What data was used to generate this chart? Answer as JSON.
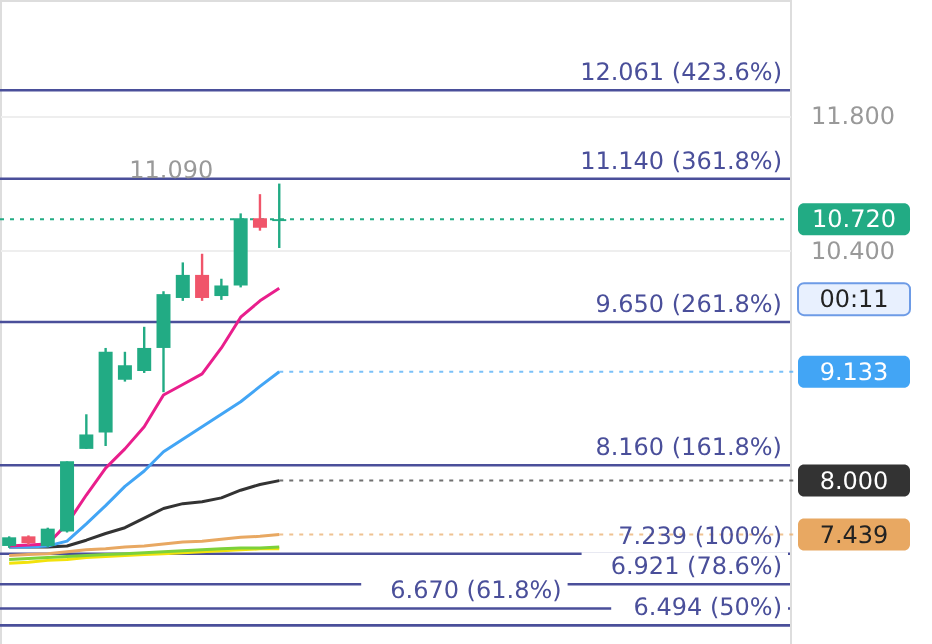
{
  "chart_data": {
    "type": "candlestick",
    "categories": [
      null,
      null,
      null,
      null,
      null,
      null,
      null,
      null,
      null,
      null,
      null,
      null,
      null,
      null,
      null,
      null,
      null,
      null,
      null,
      null,
      null,
      null,
      null,
      null,
      null,
      null,
      null,
      null,
      null,
      null,
      null,
      null,
      null,
      null,
      null,
      null,
      null,
      null,
      null,
      null,
      null
    ],
    "ohlc": [
      [
        7.32,
        7.42,
        7.3,
        7.41
      ],
      [
        7.42,
        7.43,
        7.33,
        7.35
      ],
      [
        7.32,
        7.51,
        7.31,
        7.5
      ],
      [
        7.47,
        8.2,
        7.46,
        8.2
      ],
      [
        8.33,
        8.69,
        8.33,
        8.48
      ],
      [
        8.5,
        9.38,
        8.36,
        9.34
      ],
      [
        9.05,
        9.34,
        9.03,
        9.2
      ],
      [
        9.14,
        9.6,
        9.12,
        9.38
      ],
      [
        9.38,
        9.97,
        8.92,
        9.94
      ],
      [
        9.9,
        10.27,
        9.87,
        10.14
      ],
      [
        10.14,
        10.36,
        9.87,
        9.9
      ],
      [
        9.92,
        10.1,
        9.88,
        10.03
      ],
      [
        10.03,
        10.78,
        10.01,
        10.73
      ],
      [
        10.73,
        10.98,
        10.6,
        10.63
      ],
      [
        10.7,
        11.09,
        10.42,
        10.72
      ],
      null,
      null,
      null,
      null,
      null,
      null,
      null,
      null,
      null,
      null,
      null,
      null,
      null,
      null,
      null,
      null,
      null,
      null,
      null,
      null,
      null,
      null,
      null,
      null,
      null,
      null
    ],
    "colors": [
      "#22ab84",
      "#f0556a",
      "#22ab84",
      "#22ab84",
      "#22ab84",
      "#22ab84",
      "#22ab84",
      "#22ab84",
      "#22ab84",
      "#22ab84",
      "#f0556a",
      "#22ab84",
      "#22ab84",
      "#f0556a",
      "#22ab84",
      null,
      null,
      null,
      null,
      null,
      null,
      null,
      null,
      null,
      null,
      null,
      null,
      null,
      null,
      null,
      null,
      null,
      null,
      null,
      null,
      null,
      null,
      null,
      null,
      null,
      null
    ],
    "series": [
      {
        "type": "line",
        "color": "#f2e20c",
        "values": [
          7.14,
          7.15,
          7.17,
          7.18,
          7.2,
          7.21,
          7.22,
          7.23,
          7.24,
          7.25,
          7.26,
          7.27,
          7.28,
          7.29,
          7.29,
          null,
          null,
          null,
          null,
          null,
          null,
          null,
          null,
          null,
          null,
          null,
          null,
          null,
          null,
          null,
          null,
          null,
          null,
          null,
          null,
          null,
          null,
          null,
          null,
          null,
          null
        ]
      },
      {
        "type": "line",
        "color": "#7cd13a",
        "values": [
          7.18,
          7.19,
          7.2,
          7.21,
          7.22,
          7.23,
          7.24,
          7.25,
          7.26,
          7.27,
          7.28,
          7.29,
          7.3,
          7.3,
          7.31,
          null,
          null,
          null,
          null,
          null,
          null,
          null,
          null,
          null,
          null,
          null,
          null,
          null,
          null,
          null,
          null,
          null,
          null,
          null,
          null,
          null,
          null,
          null,
          null,
          null,
          null
        ]
      },
      {
        "type": "line",
        "color": "#e8a862",
        "values": [
          7.22,
          7.23,
          7.24,
          7.26,
          7.28,
          7.29,
          7.31,
          7.32,
          7.34,
          7.36,
          7.37,
          7.39,
          7.41,
          7.42,
          7.439,
          null,
          null,
          null,
          null,
          null,
          null,
          null,
          null,
          null,
          null,
          null,
          null,
          null,
          null,
          null,
          null,
          null,
          null,
          null,
          null,
          null,
          null,
          null,
          null,
          null,
          null
        ],
        "value_labels": [
          null,
          null,
          null,
          null,
          null,
          null,
          null,
          null,
          null,
          null,
          null,
          null,
          null,
          null,
          "7.439",
          null,
          null,
          null,
          null,
          null,
          null,
          null,
          null,
          null,
          null,
          null,
          null,
          null,
          null,
          null,
          null,
          null,
          null,
          null,
          null,
          null,
          null,
          null,
          null,
          null,
          null
        ]
      },
      {
        "type": "line",
        "color": "#333333",
        "values": [
          7.31,
          null,
          7.31,
          7.32,
          7.38,
          7.45,
          7.51,
          7.61,
          7.71,
          7.76,
          7.78,
          7.82,
          7.9,
          7.96,
          8.0,
          null,
          null,
          null,
          null,
          null,
          null,
          null,
          null,
          null,
          null,
          null,
          null,
          null,
          null,
          null,
          null,
          null,
          null,
          null,
          null,
          null,
          null,
          null,
          null,
          null,
          null
        ],
        "value_labels": [
          null,
          null,
          null,
          null,
          null,
          null,
          null,
          null,
          null,
          null,
          null,
          null,
          null,
          null,
          "8.000",
          null,
          null,
          null,
          null,
          null,
          null,
          null,
          null,
          null,
          null,
          null,
          null,
          null,
          null,
          null,
          null,
          null,
          null,
          null,
          null,
          null,
          null,
          null,
          null,
          null,
          null
        ]
      },
      {
        "type": "line",
        "color": "#42a5f5",
        "values": [
          7.31,
          7.31,
          7.32,
          7.37,
          7.55,
          7.74,
          7.94,
          8.1,
          8.3,
          8.43,
          8.56,
          8.69,
          8.82,
          8.98,
          9.133,
          null,
          null,
          null,
          null,
          null,
          null,
          null,
          null,
          null,
          null,
          null,
          null,
          null,
          null,
          null,
          null,
          null,
          null,
          null,
          null,
          null,
          null,
          null,
          null,
          null,
          null
        ],
        "value_labels": [
          null,
          null,
          null,
          null,
          null,
          null,
          null,
          null,
          null,
          null,
          null,
          null,
          null,
          null,
          "9.133",
          null,
          null,
          null,
          null,
          null,
          null,
          null,
          null,
          null,
          null,
          null,
          null,
          null,
          null,
          null,
          null,
          null,
          null,
          null,
          null,
          null,
          null,
          null,
          null,
          null,
          null
        ]
      },
      {
        "type": "line",
        "color": "#e91e8c",
        "values": [
          7.32,
          7.33,
          7.34,
          7.55,
          7.85,
          8.13,
          8.33,
          8.56,
          8.89,
          9.0,
          9.11,
          9.38,
          9.7,
          9.87,
          10.0,
          null,
          null,
          null,
          null,
          null,
          null,
          null,
          null,
          null,
          null,
          null,
          null,
          null,
          null,
          null,
          null,
          null,
          null,
          null,
          null,
          null,
          null,
          null,
          null,
          null,
          null
        ]
      }
    ],
    "ylim": [
      6.3,
      13.0
    ],
    "yticks": [
      {
        "value": 11.8,
        "label": "11.800"
      },
      {
        "value": 10.4,
        "label": "10.400"
      }
    ],
    "grid": "y",
    "tick_labels": "y",
    "ref_lines": [
      {
        "axis": "y",
        "value": 12.061,
        "label": "12.061 (423.6%)",
        "color": "#4a4f9a"
      },
      {
        "axis": "y",
        "value": 11.14,
        "label": "11.140 (361.8%)",
        "color": "#4a4f9a"
      },
      {
        "axis": "y",
        "value": 9.65,
        "label": "9.650 (261.8%)",
        "color": "#4a4f9a"
      },
      {
        "axis": "y",
        "value": 8.16,
        "label": "8.160 (161.8%)",
        "color": "#4a4f9a"
      },
      {
        "axis": "y",
        "value": 7.239,
        "label": "7.239 (100%)",
        "color": "#4a4f9a"
      },
      {
        "axis": "y",
        "value": 6.921,
        "label": "6.921 (78.6%)",
        "color": "#4a4f9a"
      },
      {
        "axis": "y",
        "value": 6.67,
        "label": "6.670 (61.8%)",
        "color": "#4a4f9a"
      },
      {
        "axis": "y",
        "value": 6.494,
        "label": "6.494 (50%)",
        "color": "#4a4f9a"
      },
      {
        "axis": "y",
        "value": 10.72,
        "label": "10.720",
        "color": "#22ab84",
        "line_style": "dotted"
      }
    ],
    "annotations": [
      {
        "text": "11.090",
        "y": 11.09
      },
      "00:11"
    ]
  }
}
